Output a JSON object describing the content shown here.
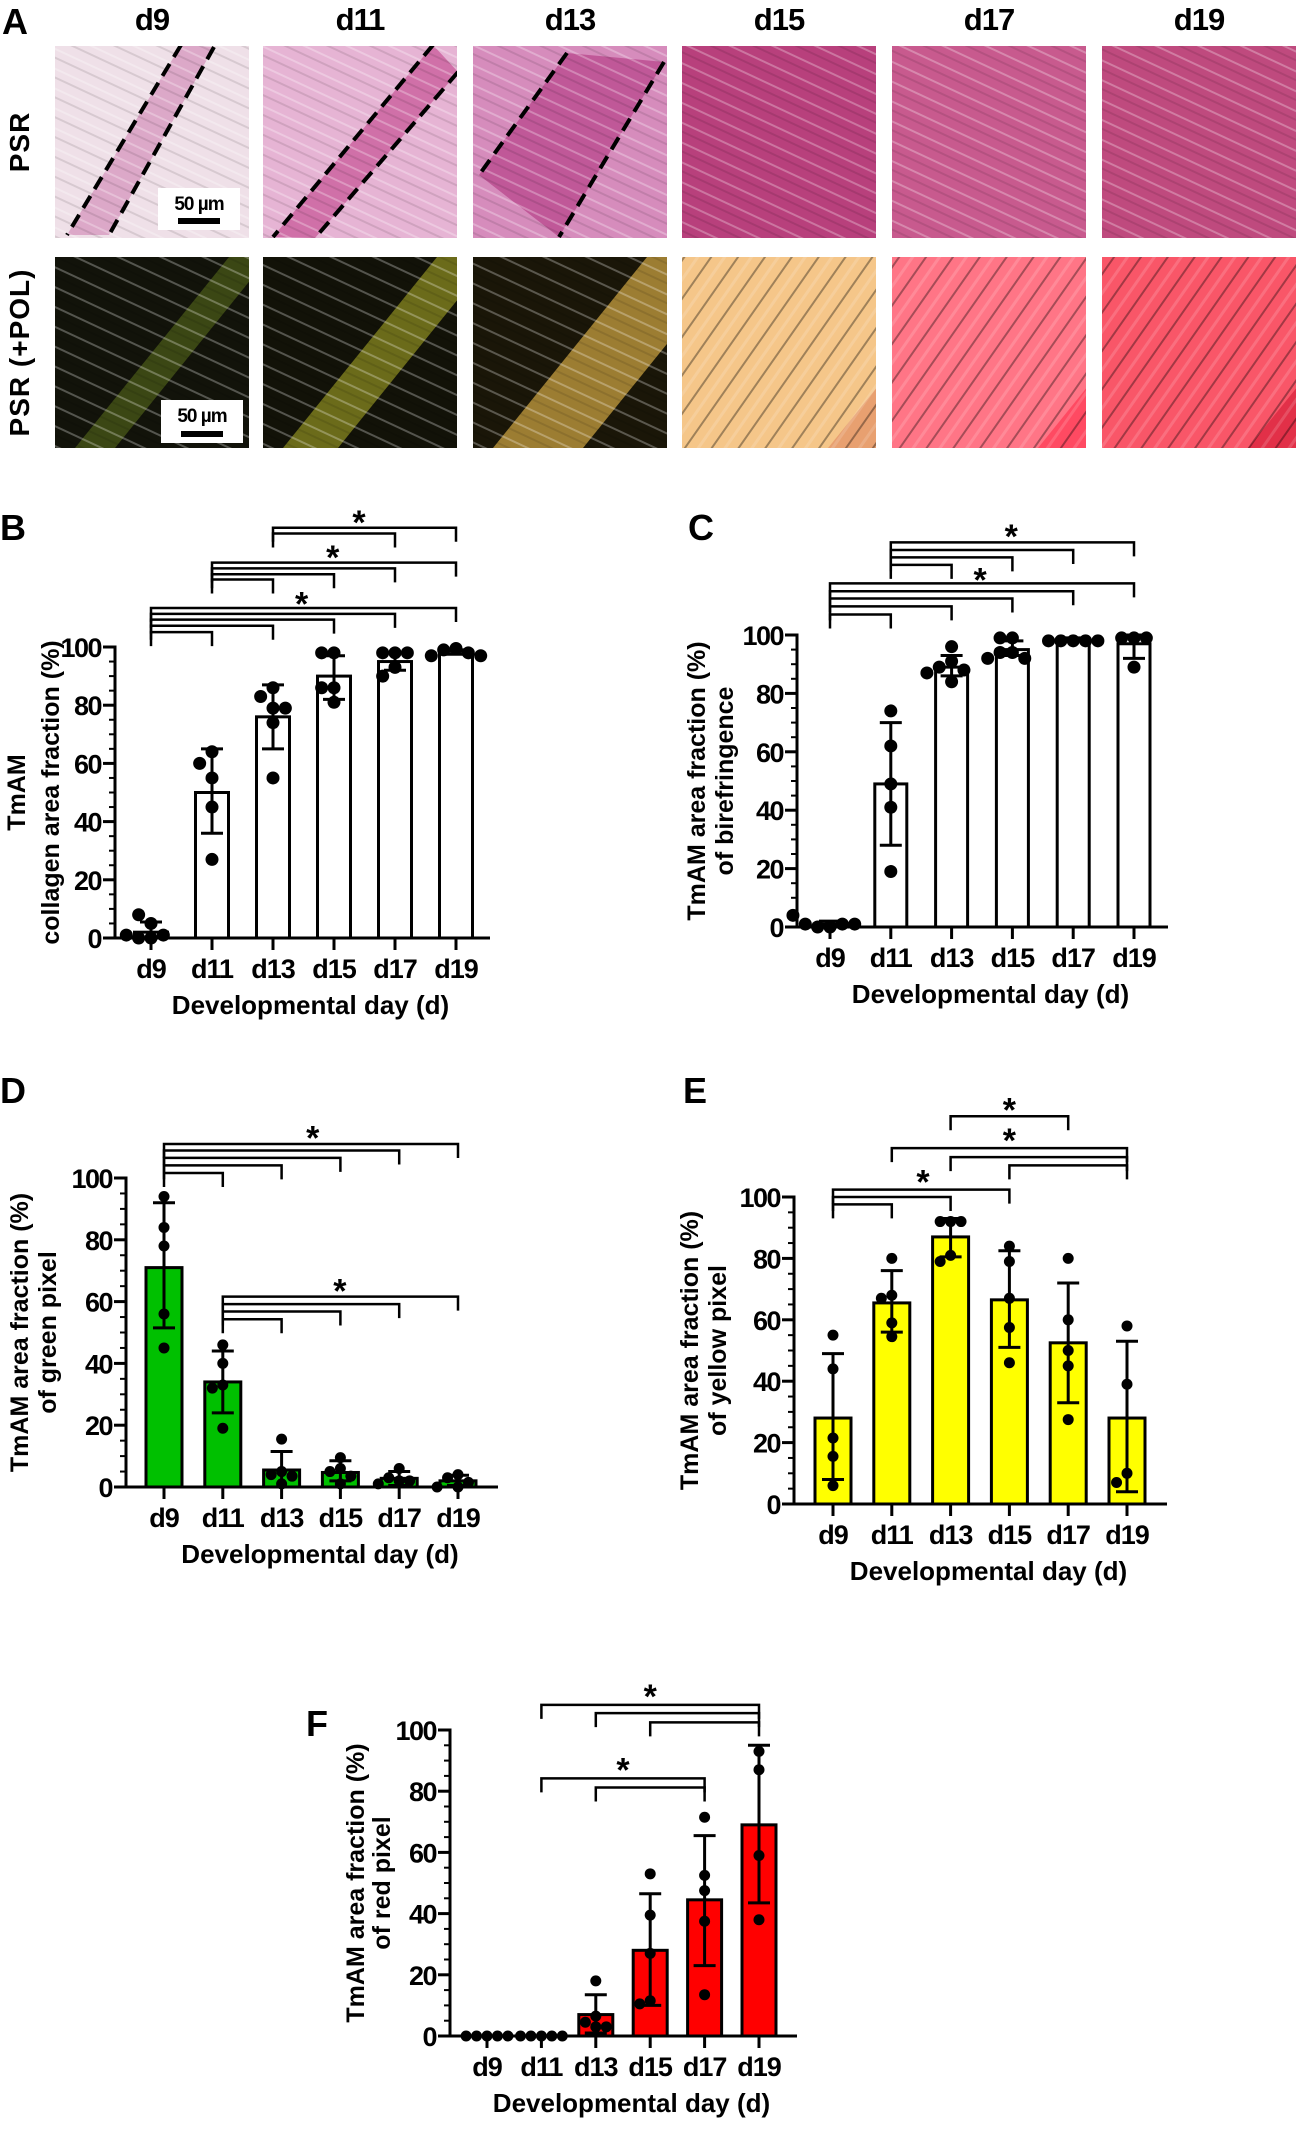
{
  "panel_a": {
    "label": "A",
    "columns": [
      "d9",
      "d11",
      "d13",
      "d15",
      "d17",
      "d19"
    ],
    "rows": [
      "PSR",
      "PSR (+POL)"
    ],
    "scale_bar": "50 µm",
    "psr_colors": [
      "#efe0e8",
      "#e6b4d4",
      "#d68cbc",
      "#b8407c",
      "#c85a8e",
      "#bf4a7e"
    ],
    "pol_colors": [
      "#12130a",
      "#121208",
      "#1a1608",
      "#e8a070",
      "#ff4a62",
      "#e23048"
    ],
    "pol_band_colors": [
      "#4a5a18",
      "#8a8a20",
      "#c8a040",
      "#f8d090",
      "#ff8090",
      "#ff6070"
    ]
  },
  "chart_data": [
    {
      "panel": "B",
      "type": "bar",
      "categories": [
        "d9",
        "d11",
        "d13",
        "d15",
        "d17",
        "d19"
      ],
      "xlabel": "Developmental day (d)",
      "ylabel": [
        "TmAM",
        "collagen area fraction (%)"
      ],
      "ylim": [
        0,
        100
      ],
      "yticks": [
        0,
        20,
        40,
        60,
        80,
        100
      ],
      "bar_color": "#ffffff",
      "means": [
        2,
        50,
        76,
        90,
        95,
        98.5
      ],
      "error": [
        [
          0,
          5.5
        ],
        [
          36,
          65
        ],
        [
          65,
          87
        ],
        [
          82,
          97
        ],
        [
          92,
          98
        ],
        [
          97.5,
          99
        ]
      ],
      "points": [
        [
          0,
          0,
          1,
          1,
          5,
          8
        ],
        [
          64,
          60,
          55,
          45,
          27
        ],
        [
          86,
          83,
          79,
          79,
          74,
          55
        ],
        [
          98,
          98,
          86,
          86,
          81
        ],
        [
          98,
          98,
          98,
          93,
          90
        ],
        [
          99.5,
          99,
          98,
          97,
          97
        ]
      ],
      "brackets": [
        {
          "from": 0,
          "to": 5,
          "y": 113.4
        },
        {
          "from": 0,
          "to": 4,
          "y": 111.4
        },
        {
          "from": 0,
          "to": 3,
          "y": 109.4
        },
        {
          "from": 0,
          "to": 2,
          "y": 107.3
        },
        {
          "from": 0,
          "to": 1,
          "y": 105.1
        },
        {
          "from": 1,
          "to": 5,
          "y": 129
        },
        {
          "from": 1,
          "to": 4,
          "y": 127
        },
        {
          "from": 1,
          "to": 3,
          "y": 125
        },
        {
          "from": 1,
          "to": 2,
          "y": 123.2
        },
        {
          "from": 2,
          "to": 5,
          "y": 141
        },
        {
          "from": 2,
          "to": 4,
          "y": 139
        }
      ],
      "stars": [
        {
          "label": "*",
          "x": 2.47,
          "y": 117
        },
        {
          "label": "*",
          "x": 2.98,
          "y": 133
        },
        {
          "label": "*",
          "x": 3.41,
          "y": 145
        }
      ]
    },
    {
      "panel": "C",
      "type": "bar",
      "categories": [
        "d9",
        "d11",
        "d13",
        "d15",
        "d17",
        "d19"
      ],
      "xlabel": "Developmental day (d)",
      "ylabel": [
        "TmAM area fraction (%)",
        "of birefringence"
      ],
      "ylim": [
        0,
        100
      ],
      "yticks": [
        0,
        20,
        40,
        60,
        80,
        100
      ],
      "bar_color": "#ffffff",
      "means": [
        1,
        49,
        89,
        95,
        98.5,
        97
      ],
      "error": [
        [
          0,
          2
        ],
        [
          28,
          70
        ],
        [
          86,
          93
        ],
        [
          93,
          98
        ],
        [
          98,
          99
        ],
        [
          92,
          100
        ]
      ],
      "points": [
        [
          0,
          0,
          1,
          1,
          1,
          4
        ],
        [
          74,
          62,
          49,
          41,
          19
        ],
        [
          96,
          91,
          89,
          88,
          87,
          84
        ],
        [
          99,
          99,
          94,
          94,
          92,
          92
        ],
        [
          98,
          98,
          98,
          98,
          98
        ],
        [
          99,
          99,
          99,
          89
        ]
      ],
      "brackets": [
        {
          "from": 0,
          "to": 5,
          "y": 117.7
        },
        {
          "from": 0,
          "to": 4,
          "y": 115
        },
        {
          "from": 0,
          "to": 3,
          "y": 112.5
        },
        {
          "from": 0,
          "to": 2,
          "y": 109.8
        },
        {
          "from": 0,
          "to": 1,
          "y": 107
        },
        {
          "from": 1,
          "to": 5,
          "y": 131.7
        },
        {
          "from": 1,
          "to": 4,
          "y": 129.1
        },
        {
          "from": 1,
          "to": 3,
          "y": 126.6
        },
        {
          "from": 1,
          "to": 2,
          "y": 124
        }
      ],
      "stars": [
        {
          "label": "*",
          "x": 2.47,
          "y": 121
        },
        {
          "label": "*",
          "x": 2.98,
          "y": 136
        }
      ]
    },
    {
      "panel": "D",
      "type": "bar",
      "categories": [
        "d9",
        "d11",
        "d13",
        "d15",
        "d17",
        "d19"
      ],
      "xlabel": "Developmental day (d)",
      "ylabel": [
        "TmAM area fraction (%)",
        "of green pixel"
      ],
      "ylim": [
        0,
        100
      ],
      "yticks": [
        0,
        20,
        40,
        60,
        80,
        100
      ],
      "bar_color": "#00c000",
      "means": [
        71,
        34,
        5.5,
        4.7,
        2.8,
        2
      ],
      "error": [
        [
          51.5,
          92
        ],
        [
          24,
          44
        ],
        [
          0,
          11.5
        ],
        [
          2,
          8.5
        ],
        [
          0.5,
          5
        ],
        [
          0.5,
          3.8
        ]
      ],
      "points": [
        [
          94,
          84,
          78,
          56,
          45
        ],
        [
          46,
          40,
          33,
          32,
          19
        ],
        [
          15.5,
          5,
          4,
          3.5,
          1
        ],
        [
          9.5,
          6,
          5,
          3.5,
          1
        ],
        [
          6,
          3,
          2,
          2,
          1
        ],
        [
          4,
          3,
          1.5,
          0,
          0
        ]
      ],
      "brackets": [
        {
          "from": 0,
          "to": 5,
          "y": 111
        },
        {
          "from": 0,
          "to": 4,
          "y": 108.9
        },
        {
          "from": 0,
          "to": 3,
          "y": 106.5
        },
        {
          "from": 0,
          "to": 2,
          "y": 104.1
        },
        {
          "from": 0,
          "to": 1,
          "y": 101.6
        },
        {
          "from": 1,
          "to": 5,
          "y": 61.6
        },
        {
          "from": 1,
          "to": 4,
          "y": 59.2
        },
        {
          "from": 1,
          "to": 3,
          "y": 56.8
        },
        {
          "from": 1,
          "to": 2,
          "y": 54.3
        }
      ],
      "stars": [
        {
          "label": "*",
          "x": 2.53,
          "y": 115
        },
        {
          "label": "*",
          "x": 2.99,
          "y": 65.5
        }
      ]
    },
    {
      "panel": "E",
      "type": "bar",
      "categories": [
        "d9",
        "d11",
        "d13",
        "d15",
        "d17",
        "d19"
      ],
      "xlabel": "Developmental day (d)",
      "ylabel": [
        "TmAM area fraction (%)",
        "of yellow pixel"
      ],
      "ylim": [
        0,
        100
      ],
      "yticks": [
        0,
        20,
        40,
        60,
        80,
        100
      ],
      "bar_color": "#ffff00",
      "means": [
        28,
        65.5,
        87,
        66.5,
        52.5,
        28
      ],
      "error": [
        [
          8,
          49
        ],
        [
          56,
          76
        ],
        [
          80.5,
          93
        ],
        [
          51,
          82.5
        ],
        [
          33,
          72
        ],
        [
          4,
          53
        ]
      ],
      "points": [
        [
          55,
          44,
          21.5,
          15.5,
          6
        ],
        [
          80,
          68,
          67,
          59,
          54.5
        ],
        [
          92,
          92,
          92,
          81,
          79
        ],
        [
          84,
          79,
          67,
          57.5,
          46
        ],
        [
          80,
          60,
          50,
          45,
          27.5
        ],
        [
          58,
          39,
          10,
          7
        ]
      ],
      "brackets": [
        {
          "from": 0,
          "to": 3,
          "y": 102.4
        },
        {
          "from": 0,
          "to": 2,
          "y": 100
        },
        {
          "from": 0,
          "to": 1,
          "y": 97.6
        },
        {
          "from": 1,
          "to": 5,
          "y": 115.9
        },
        {
          "from": 2,
          "to": 5,
          "y": 113
        },
        {
          "from": 3,
          "to": 5,
          "y": 110.3
        },
        {
          "from": 2,
          "to": 4,
          "y": 126.3
        }
      ],
      "stars": [
        {
          "label": "*",
          "x": 1.53,
          "y": 107
        },
        {
          "label": "*",
          "x": 3.0,
          "y": 120.5
        },
        {
          "label": "*",
          "x": 3.0,
          "y": 130.5
        }
      ]
    },
    {
      "panel": "F",
      "type": "bar",
      "categories": [
        "d9",
        "d11",
        "d13",
        "d15",
        "d17",
        "d19"
      ],
      "xlabel": "Developmental day (d)",
      "ylabel": [
        "TmAM area fraction (%)",
        "of red pixel"
      ],
      "ylim": [
        0,
        100
      ],
      "yticks": [
        0,
        20,
        40,
        60,
        80,
        100
      ],
      "bar_color": "#ff0000",
      "means": [
        0,
        0,
        7,
        28,
        44.5,
        69
      ],
      "error": [
        [
          0,
          0
        ],
        [
          0,
          0
        ],
        [
          1,
          13.5
        ],
        [
          10,
          46.5
        ],
        [
          23,
          65.5
        ],
        [
          43.5,
          95
        ]
      ],
      "points": [
        [
          0,
          0,
          0,
          0,
          0
        ],
        [
          0,
          0,
          0,
          0,
          0
        ],
        [
          18,
          6.5,
          4.5,
          3,
          3
        ],
        [
          53,
          39.5,
          27,
          11.5,
          10.5
        ],
        [
          71.5,
          52.5,
          47.5,
          37.5,
          13.5
        ],
        [
          93,
          87,
          59,
          38
        ]
      ],
      "brackets": [
        {
          "from": 1,
          "to": 5,
          "y": 108.2
        },
        {
          "from": 2,
          "to": 5,
          "y": 105.5
        },
        {
          "from": 3,
          "to": 5,
          "y": 102.5
        },
        {
          "from": 1,
          "to": 4,
          "y": 84.2
        },
        {
          "from": 2,
          "to": 4,
          "y": 81.2
        }
      ],
      "stars": [
        {
          "label": "*",
          "x": 3.0,
          "y": 113
        },
        {
          "label": "*",
          "x": 2.5,
          "y": 89
        }
      ]
    }
  ]
}
